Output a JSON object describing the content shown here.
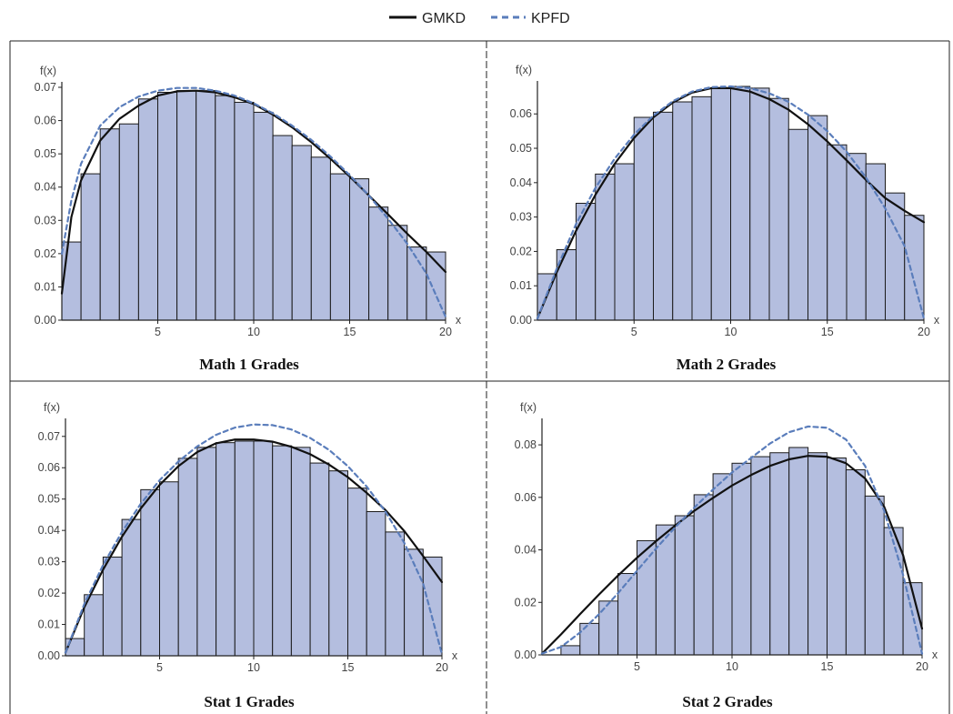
{
  "legend": [
    {
      "label": "GMKD",
      "color": "#111111",
      "dash": "solid"
    },
    {
      "label": "KPFD",
      "color": "#5a7dbb",
      "dash": "dashed"
    }
  ],
  "colors": {
    "bar_fill": "#b4bedf",
    "bar_stroke": "#1a1a1a",
    "frame": "#222222"
  },
  "chart_data": [
    {
      "type": "bar",
      "title": "Math 1 Grades",
      "xlabel": "x",
      "ylabel": "f(x)",
      "xlim": [
        0,
        20
      ],
      "ylim": [
        0,
        0.07
      ],
      "xticks": [
        5,
        10,
        15,
        20
      ],
      "yticks": [
        0.0,
        0.01,
        0.02,
        0.03,
        0.04,
        0.05,
        0.06,
        0.07
      ],
      "bin_edges": [
        0,
        1,
        2,
        3,
        4,
        5,
        6,
        7,
        8,
        9,
        10,
        11,
        12,
        13,
        14,
        15,
        16,
        17,
        18,
        19,
        20
      ],
      "values": [
        0.0235,
        0.044,
        0.0575,
        0.059,
        0.0665,
        0.0685,
        0.069,
        0.069,
        0.0675,
        0.0655,
        0.0625,
        0.0555,
        0.0525,
        0.049,
        0.044,
        0.0425,
        0.034,
        0.0285,
        0.022,
        0.0205
      ],
      "series": [
        {
          "name": "GMKD",
          "x": [
            0,
            0.5,
            1,
            2,
            3,
            4,
            5,
            6,
            7,
            8,
            9,
            10,
            11,
            12,
            13,
            14,
            15,
            16,
            17,
            18,
            19,
            20
          ],
          "y": [
            0.008,
            0.031,
            0.042,
            0.054,
            0.0605,
            0.0645,
            0.0675,
            0.0688,
            0.069,
            0.0685,
            0.067,
            0.065,
            0.0618,
            0.058,
            0.0535,
            0.0485,
            0.0432,
            0.0375,
            0.0318,
            0.026,
            0.0205,
            0.0145
          ]
        },
        {
          "name": "KPFD",
          "x": [
            0,
            0.5,
            1,
            2,
            3,
            4,
            5,
            6,
            7,
            8,
            9,
            10,
            11,
            12,
            13,
            14,
            15,
            16,
            17,
            18,
            19,
            20
          ],
          "y": [
            0.02,
            0.036,
            0.047,
            0.0585,
            0.064,
            0.0672,
            0.069,
            0.0698,
            0.0698,
            0.069,
            0.0675,
            0.0652,
            0.0622,
            0.0585,
            0.0542,
            0.0492,
            0.0436,
            0.0375,
            0.0305,
            0.023,
            0.014,
            0.001
          ]
        }
      ]
    },
    {
      "type": "bar",
      "title": "Math 2 Grades",
      "xlabel": "x",
      "ylabel": "f(x)",
      "xlim": [
        0,
        20
      ],
      "ylim": [
        0,
        0.068
      ],
      "xticks": [
        5,
        10,
        15,
        20
      ],
      "yticks": [
        0.0,
        0.01,
        0.02,
        0.03,
        0.04,
        0.05,
        0.06
      ],
      "bin_edges": [
        0,
        1,
        2,
        3,
        4,
        5,
        6,
        7,
        8,
        9,
        10,
        11,
        12,
        13,
        14,
        15,
        16,
        17,
        18,
        19,
        20
      ],
      "values": [
        0.0135,
        0.0205,
        0.034,
        0.0425,
        0.0455,
        0.059,
        0.0605,
        0.0635,
        0.065,
        0.0675,
        0.068,
        0.0675,
        0.0645,
        0.0555,
        0.0595,
        0.051,
        0.0485,
        0.0455,
        0.037,
        0.0305
      ],
      "series": [
        {
          "name": "GMKD",
          "x": [
            0,
            1,
            2,
            3,
            4,
            5,
            6,
            7,
            8,
            9,
            10,
            11,
            12,
            13,
            14,
            15,
            16,
            17,
            18,
            19,
            20
          ],
          "y": [
            0.0005,
            0.014,
            0.026,
            0.0365,
            0.0455,
            0.053,
            0.059,
            0.0633,
            0.0662,
            0.0675,
            0.0675,
            0.0665,
            0.0643,
            0.0612,
            0.057,
            0.052,
            0.0465,
            0.0408,
            0.0355,
            0.0318,
            0.0285
          ]
        },
        {
          "name": "KPFD",
          "x": [
            0,
            1,
            2,
            3,
            4,
            5,
            6,
            7,
            8,
            9,
            10,
            11,
            12,
            13,
            14,
            15,
            16,
            17,
            18,
            19,
            20
          ],
          "y": [
            0.0005,
            0.015,
            0.028,
            0.0385,
            0.047,
            0.054,
            0.0595,
            0.0637,
            0.0665,
            0.0678,
            0.068,
            0.0675,
            0.066,
            0.0635,
            0.0598,
            0.055,
            0.049,
            0.0415,
            0.0325,
            0.0215,
            0.0005
          ]
        }
      ]
    },
    {
      "type": "bar",
      "title": "Stat 1 Grades",
      "xlabel": "x",
      "ylabel": "f(x)",
      "xlim": [
        0,
        20
      ],
      "ylim": [
        0,
        0.074
      ],
      "xticks": [
        5,
        10,
        15,
        20
      ],
      "yticks": [
        0.0,
        0.01,
        0.02,
        0.03,
        0.04,
        0.05,
        0.06,
        0.07
      ],
      "bin_edges": [
        0,
        1,
        2,
        3,
        4,
        5,
        6,
        7,
        8,
        9,
        10,
        11,
        12,
        13,
        14,
        15,
        16,
        17,
        18,
        19,
        20
      ],
      "values": [
        0.0055,
        0.0195,
        0.0315,
        0.0435,
        0.053,
        0.0555,
        0.063,
        0.0665,
        0.068,
        0.0685,
        0.0685,
        0.067,
        0.0665,
        0.0615,
        0.059,
        0.0535,
        0.046,
        0.0395,
        0.034,
        0.0315
      ],
      "series": [
        {
          "name": "GMKD",
          "x": [
            0,
            1,
            2,
            3,
            4,
            5,
            6,
            7,
            8,
            9,
            10,
            11,
            12,
            13,
            14,
            15,
            16,
            17,
            18,
            19,
            20
          ],
          "y": [
            0.001,
            0.0155,
            0.0275,
            0.038,
            0.047,
            0.0545,
            0.0605,
            0.065,
            0.0678,
            0.069,
            0.069,
            0.0683,
            0.0667,
            0.0643,
            0.061,
            0.057,
            0.052,
            0.0465,
            0.0398,
            0.0318,
            0.0235
          ]
        },
        {
          "name": "KPFD",
          "x": [
            0,
            1,
            2,
            3,
            4,
            5,
            6,
            7,
            8,
            9,
            10,
            11,
            12,
            13,
            14,
            15,
            16,
            17,
            18,
            19,
            20
          ],
          "y": [
            0.001,
            0.0165,
            0.029,
            0.0395,
            0.0485,
            0.056,
            0.062,
            0.0668,
            0.0705,
            0.0728,
            0.0738,
            0.0736,
            0.0722,
            0.0695,
            0.0657,
            0.0605,
            0.054,
            0.046,
            0.036,
            0.023,
            0.0005
          ]
        }
      ]
    },
    {
      "type": "bar",
      "title": "Stat 2 Grades",
      "xlabel": "x",
      "ylabel": "f(x)",
      "xlim": [
        0,
        20
      ],
      "ylim": [
        0,
        0.088
      ],
      "xticks": [
        5,
        10,
        15,
        20
      ],
      "yticks": [
        0.0,
        0.02,
        0.04,
        0.06,
        0.08
      ],
      "bin_edges": [
        0,
        1,
        2,
        3,
        4,
        5,
        6,
        7,
        8,
        9,
        10,
        11,
        12,
        13,
        14,
        15,
        16,
        17,
        18,
        19,
        20
      ],
      "values": [
        0.0,
        0.0035,
        0.012,
        0.0205,
        0.031,
        0.0435,
        0.0495,
        0.053,
        0.061,
        0.069,
        0.073,
        0.0755,
        0.077,
        0.079,
        0.077,
        0.075,
        0.0705,
        0.0605,
        0.0485,
        0.0275
      ],
      "series": [
        {
          "name": "GMKD",
          "x": [
            0,
            1,
            2,
            3,
            4,
            5,
            6,
            7,
            8,
            9,
            10,
            11,
            12,
            13,
            14,
            15,
            16,
            17,
            18,
            19,
            20
          ],
          "y": [
            0.0005,
            0.0078,
            0.0155,
            0.023,
            0.0302,
            0.037,
            0.0433,
            0.0492,
            0.0548,
            0.0598,
            0.0645,
            0.0685,
            0.072,
            0.0745,
            0.0758,
            0.0755,
            0.073,
            0.0672,
            0.0565,
            0.038,
            0.01
          ]
        },
        {
          "name": "KPFD",
          "x": [
            0,
            1,
            2,
            3,
            4,
            5,
            6,
            7,
            8,
            9,
            10,
            11,
            12,
            13,
            14,
            15,
            16,
            17,
            18,
            19,
            20
          ],
          "y": [
            0.0005,
            0.003,
            0.0085,
            0.0155,
            0.0235,
            0.032,
            0.0405,
            0.0485,
            0.056,
            0.063,
            0.0695,
            0.075,
            0.0805,
            0.0848,
            0.087,
            0.0865,
            0.082,
            0.072,
            0.055,
            0.0305,
            0.0005
          ]
        }
      ]
    }
  ]
}
